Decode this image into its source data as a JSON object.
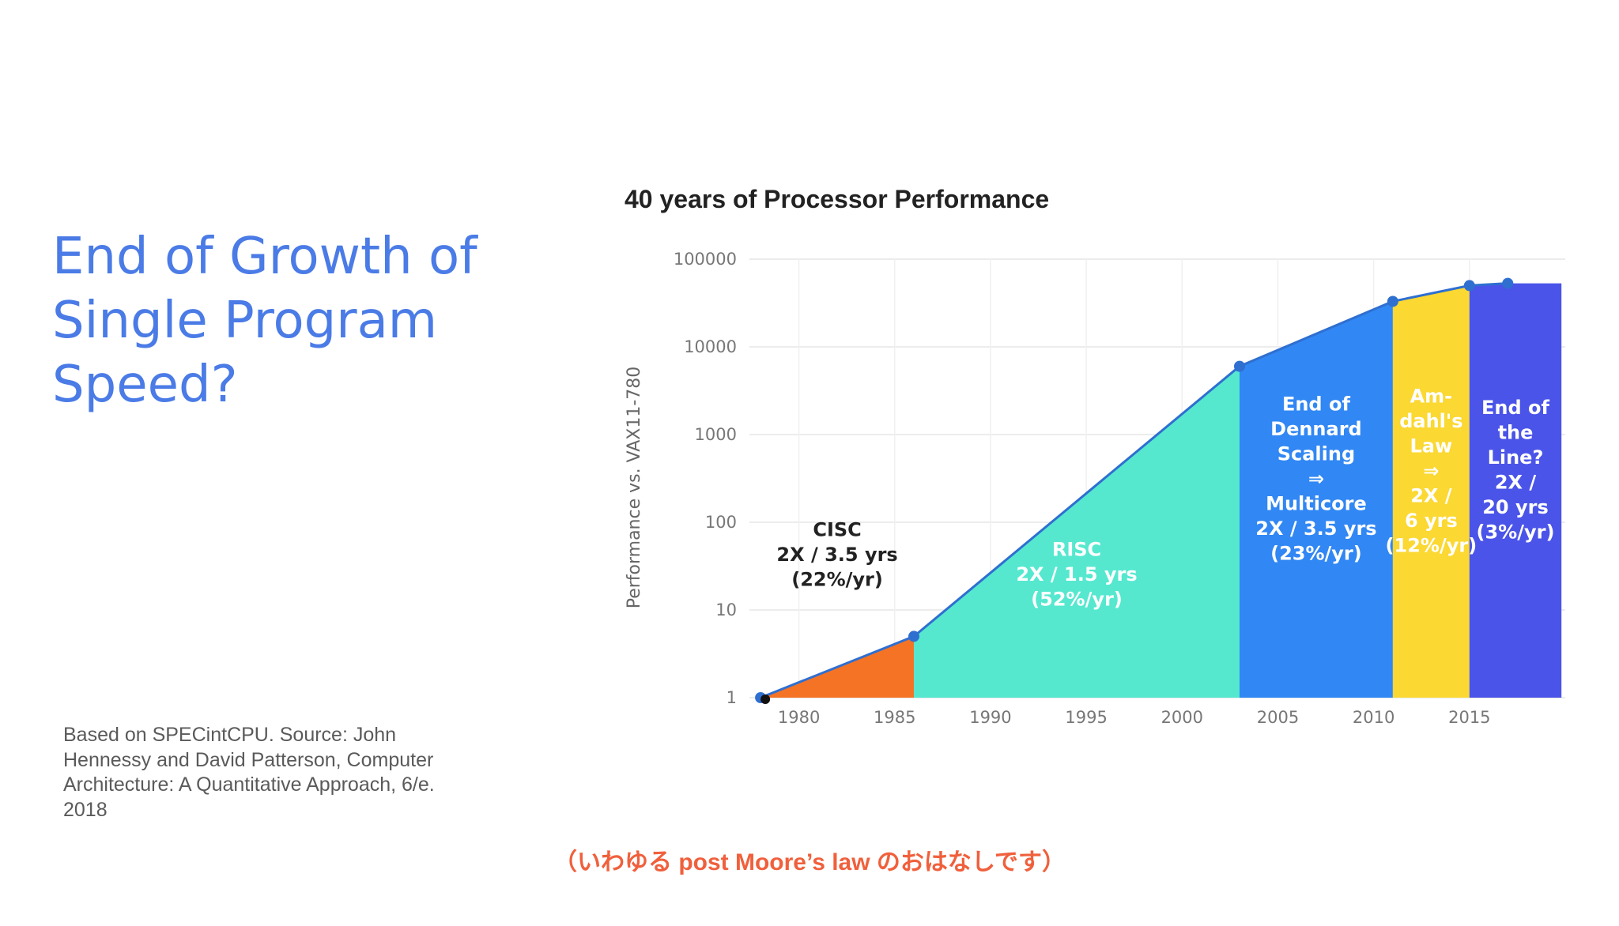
{
  "slide": {
    "title_lines": [
      "End of Growth of",
      "Single Program",
      "Speed?"
    ],
    "source_lines": [
      "Based on SPECintCPU. Source: John",
      "Hennessy and David Patterson, Computer",
      "Architecture: A Quantitative Approach, 6/e.",
      "2018"
    ],
    "caption": "（いわゆる post Moore’s law のおはなしです）"
  },
  "chart_data": {
    "type": "area",
    "title": "40 years of Processor Performance",
    "ylabel": "Performance vs. VAX11-780",
    "xlabel": "",
    "y_scale": "log",
    "ylim": [
      1,
      100000
    ],
    "xlim": [
      1977.5,
      2020
    ],
    "y_ticks": [
      1,
      10,
      100,
      1000,
      10000,
      100000
    ],
    "y_tick_labels": [
      "1",
      "10",
      "100",
      "1000",
      "10000",
      "100000"
    ],
    "x_ticks": [
      1980,
      1985,
      1990,
      1995,
      2000,
      2005,
      2010,
      2015
    ],
    "x_tick_labels": [
      "1980",
      "1985",
      "1990",
      "1995",
      "2000",
      "2005",
      "2010",
      "2015"
    ],
    "grid": true,
    "points": [
      {
        "x": 1978,
        "y": 1
      },
      {
        "x": 1986,
        "y": 5
      },
      {
        "x": 2003,
        "y": 6000
      },
      {
        "x": 2011,
        "y": 33000
      },
      {
        "x": 2015,
        "y": 50000
      },
      {
        "x": 2017,
        "y": 53000
      }
    ],
    "eras": [
      {
        "x_start": 1978,
        "x_end": 1986,
        "color": "#f57325",
        "text_color": "#222222",
        "label_inside": false,
        "lines": [
          "CISC",
          "2X / 3.5 yrs",
          "(22%/yr)"
        ]
      },
      {
        "x_start": 1986,
        "x_end": 2003,
        "color": "#55e8cf",
        "text_color": "#ffffff",
        "label_inside": true,
        "lines": [
          "RISC",
          "2X / 1.5 yrs",
          "(52%/yr)"
        ]
      },
      {
        "x_start": 2003,
        "x_end": 2011,
        "color": "#3187f3",
        "text_color": "#ffffff",
        "label_inside": true,
        "lines": [
          "End of",
          "Dennard",
          "Scaling",
          "⇒",
          "Multicore",
          "2X / 3.5 yrs",
          "(23%/yr)"
        ]
      },
      {
        "x_start": 2011,
        "x_end": 2015,
        "color": "#fbd832",
        "text_color": "#ffffff",
        "label_inside": true,
        "lines": [
          "Am-",
          "dahl's",
          "Law",
          "⇒",
          "2X /",
          "6 yrs",
          "(12%/yr)"
        ]
      },
      {
        "x_start": 2015,
        "x_end": 2019.8,
        "color": "#4a54e8",
        "text_color": "#ffffff",
        "label_inside": true,
        "lines": [
          "End of",
          "the",
          "Line?",
          "2X /",
          "20 yrs",
          "(3%/yr)"
        ]
      }
    ],
    "colors": {
      "line": "#2f6fd0",
      "marker": "#2f6fd0",
      "origin_marker": "#111111",
      "grid": "#e6e6e6"
    }
  }
}
